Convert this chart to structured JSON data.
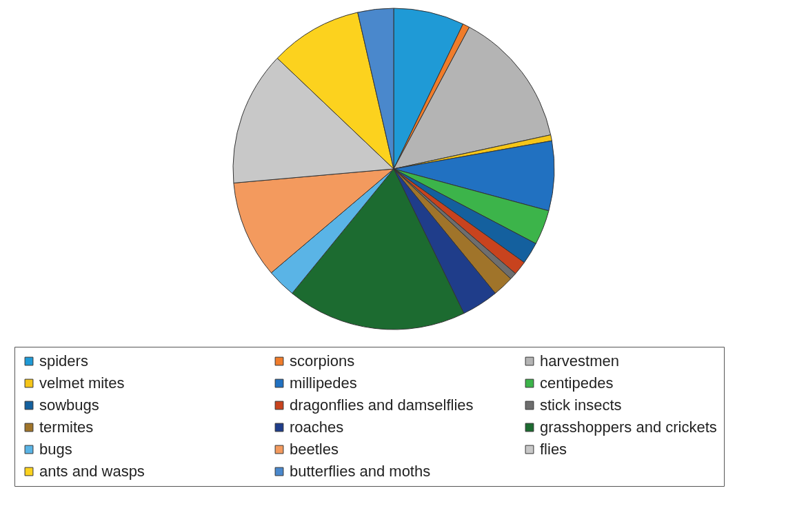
{
  "chart_data": {
    "type": "pie",
    "legend": "bottom",
    "categories": [
      "spiders",
      "scorpions",
      "harvestmen",
      "velmet mites",
      "millipedes",
      "centipedes",
      "sowbugs",
      "dragonflies and damselflies",
      "stick insects",
      "termites",
      "roaches",
      "grasshoppers and crickets",
      "bugs",
      "beetles",
      "flies",
      "ants and wasps",
      "butterflies and moths"
    ],
    "values": [
      7.1,
      0.7,
      13.8,
      0.6,
      7.0,
      3.5,
      2.2,
      1.4,
      0.7,
      2.1,
      3.7,
      18.1,
      2.9,
      9.8,
      13.5,
      9.3,
      3.6
    ],
    "colors": [
      "#1f9ad6",
      "#f07c2a",
      "#b4b4b4",
      "#f5c518",
      "#2171c1",
      "#3cb44a",
      "#14609e",
      "#c8431e",
      "#6e6e6e",
      "#a0742a",
      "#1f3d8a",
      "#1c6b30",
      "#5ab4e6",
      "#f39a5e",
      "#c8c8c8",
      "#fcd21e",
      "#4a88cc"
    ]
  }
}
